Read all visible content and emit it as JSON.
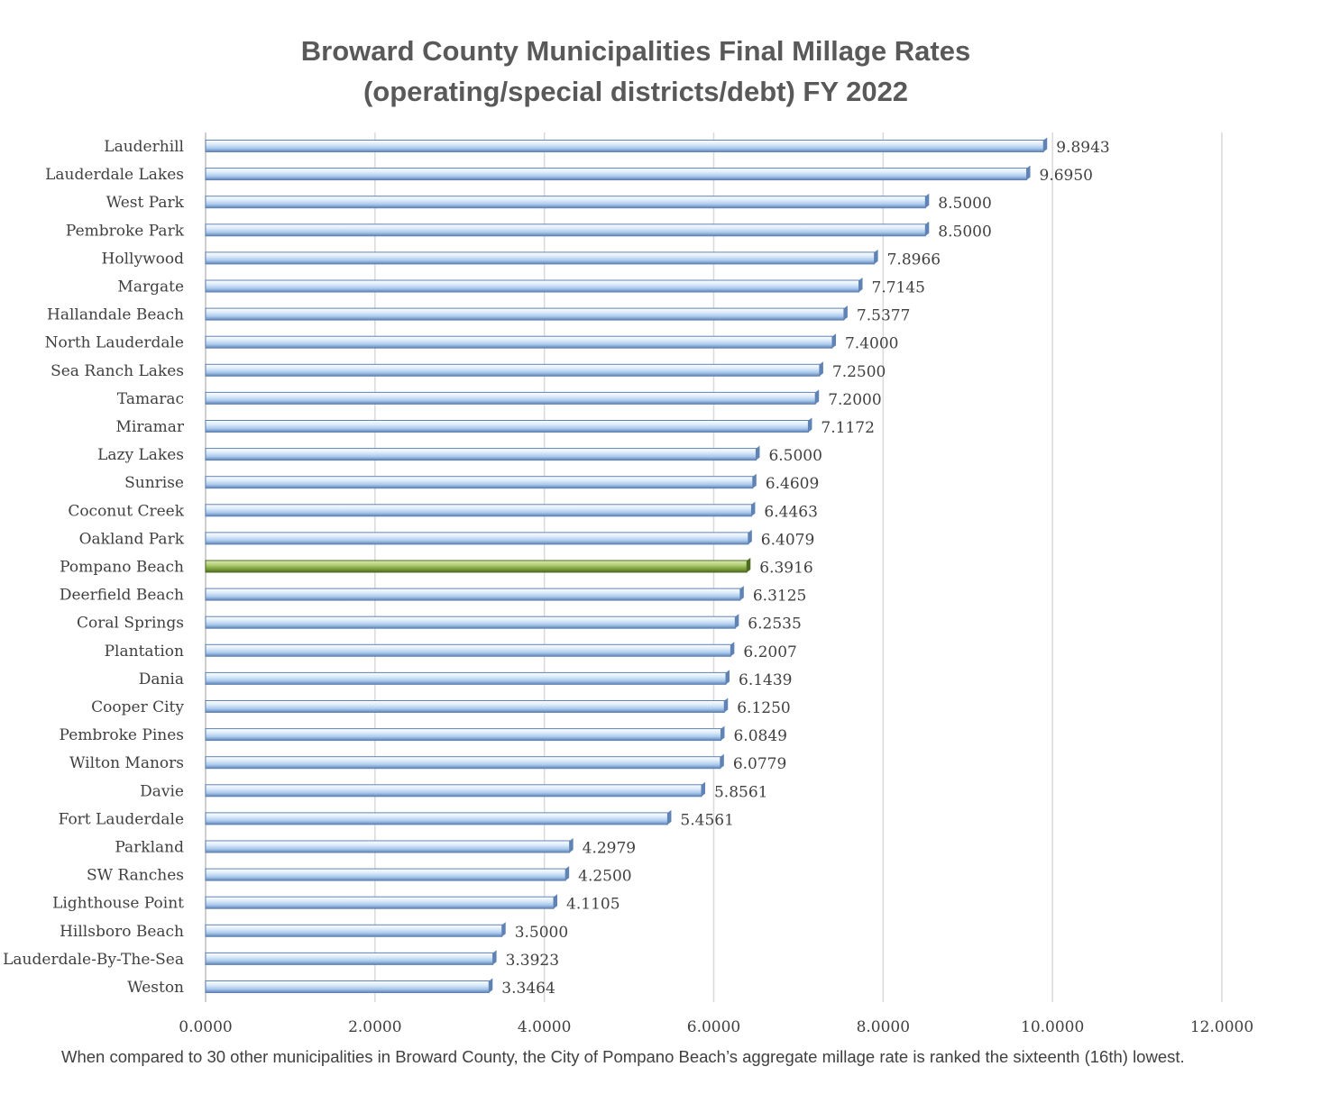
{
  "chart_data": {
    "type": "bar",
    "orientation": "horizontal",
    "title": "Broward County Municipalities Final Millage Rates (operating/special districts/debt) FY 2022",
    "title_lines": [
      "Broward County Municipalities Final Millage Rates",
      "(operating/special districts/debt) FY 2022"
    ],
    "xlabel": "",
    "ylabel": "",
    "xlim": [
      0,
      12
    ],
    "x_ticks": [
      0,
      2,
      4,
      6,
      8,
      10,
      12
    ],
    "x_tick_labels": [
      "0.0000",
      "2.0000",
      "4.0000",
      "6.0000",
      "8.0000",
      "10.0000",
      "12.0000"
    ],
    "grid": true,
    "categories": [
      "Lauderhill",
      "Lauderdale Lakes",
      "West Park",
      "Pembroke Park",
      "Hollywood",
      "Margate",
      "Hallandale Beach",
      "North Lauderdale",
      "Sea Ranch Lakes",
      "Tamarac",
      "Miramar",
      "Lazy Lakes",
      "Sunrise",
      "Coconut Creek",
      "Oakland Park",
      "Pompano Beach",
      "Deerfield Beach",
      "Coral Springs",
      "Plantation",
      "Dania",
      "Cooper City",
      "Pembroke Pines",
      "Wilton Manors",
      "Davie",
      "Fort Lauderdale",
      "Parkland",
      "SW Ranches",
      "Lighthouse Point",
      "Hillsboro Beach",
      "Lauderdale-By-The-Sea",
      "Weston"
    ],
    "values": [
      9.8943,
      9.695,
      8.5,
      8.5,
      7.8966,
      7.7145,
      7.5377,
      7.4,
      7.25,
      7.2,
      7.1172,
      6.5,
      6.4609,
      6.4463,
      6.4079,
      6.3916,
      6.3125,
      6.2535,
      6.2007,
      6.1439,
      6.125,
      6.0849,
      6.0779,
      5.8561,
      5.4561,
      4.2979,
      4.25,
      4.1105,
      3.5,
      3.3923,
      3.3464
    ],
    "value_labels": [
      "9.8943",
      "9.6950",
      "8.5000",
      "8.5000",
      "7.8966",
      "7.7145",
      "7.5377",
      "7.4000",
      "7.2500",
      "7.2000",
      "7.1172",
      "6.5000",
      "6.4609",
      "6.4463",
      "6.4079",
      "6.3916",
      "6.3125",
      "6.2535",
      "6.2007",
      "6.1439",
      "6.1250",
      "6.0849",
      "6.0779",
      "5.8561",
      "5.4561",
      "4.2979",
      "4.2500",
      "4.1105",
      "3.5000",
      "3.3923",
      "3.3464"
    ],
    "highlight_category": "Pompano Beach",
    "colors": {
      "bar": "#a9c8ec",
      "bar_light": "#dcebfa",
      "bar_dark": "#5f83b4",
      "highlight": "#7fa13c",
      "highlight_light": "#b5d27a",
      "highlight_dark": "#4f6b22",
      "grid": "#d9d9d9",
      "axis_text": "#404040",
      "title": "#595959"
    }
  },
  "footnote": "When compared to 30 other municipalities in Broward County, the City of Pompano Beach’s aggregate millage rate is ranked the sixteenth (16th) lowest."
}
